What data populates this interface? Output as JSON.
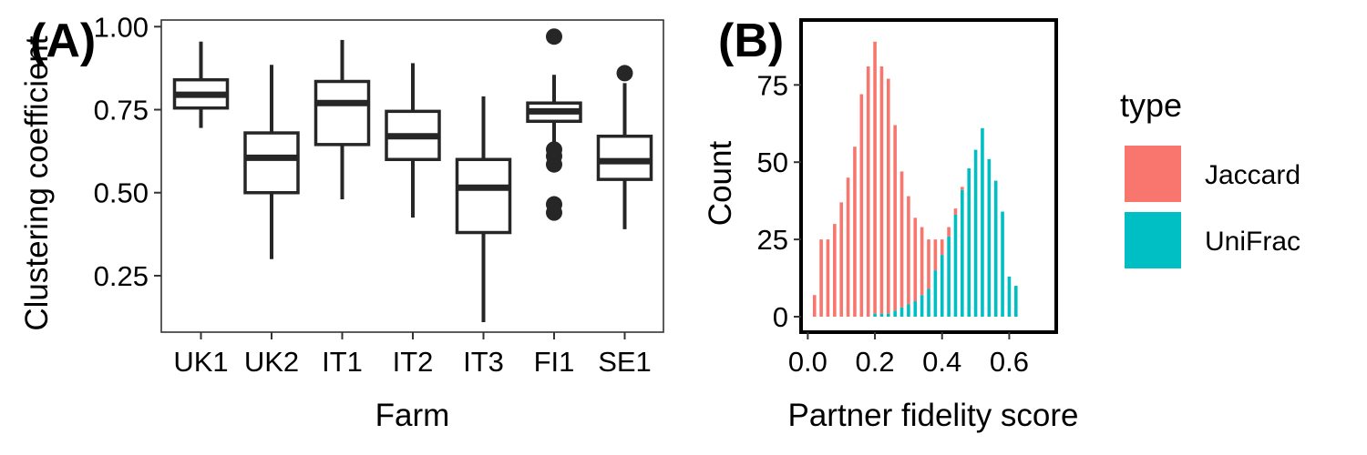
{
  "panel_a_label": "(A)",
  "panel_b_label": "(B)",
  "chart_data": [
    {
      "type": "box",
      "xlabel": "Farm",
      "ylabel": "Clustering coefficient",
      "categories": [
        "UK1",
        "UK2",
        "IT1",
        "IT2",
        "IT3",
        "FI1",
        "SE1"
      ],
      "ylim": [
        0.08,
        1.02
      ],
      "yticks": [
        0.25,
        0.5,
        0.75,
        1.0
      ],
      "ytick_labels": [
        "0.25",
        "0.50",
        "0.75",
        "1.00"
      ],
      "grid": false,
      "boxes": [
        {
          "category": "UK1",
          "min": 0.695,
          "q1": 0.755,
          "median": 0.795,
          "q3": 0.84,
          "max": 0.955,
          "outliers": []
        },
        {
          "category": "UK2",
          "min": 0.3,
          "q1": 0.5,
          "median": 0.605,
          "q3": 0.68,
          "max": 0.885,
          "outliers": []
        },
        {
          "category": "IT1",
          "min": 0.48,
          "q1": 0.645,
          "median": 0.77,
          "q3": 0.835,
          "max": 0.96,
          "outliers": []
        },
        {
          "category": "IT2",
          "min": 0.425,
          "q1": 0.6,
          "median": 0.67,
          "q3": 0.745,
          "max": 0.89,
          "outliers": []
        },
        {
          "category": "IT3",
          "min": 0.11,
          "q1": 0.38,
          "median": 0.515,
          "q3": 0.6,
          "max": 0.79,
          "outliers": []
        },
        {
          "category": "FI1",
          "min": 0.6,
          "q1": 0.715,
          "median": 0.745,
          "q3": 0.77,
          "max": 0.855,
          "outliers": [
            0.97,
            0.63,
            0.61,
            0.585,
            0.465,
            0.44
          ]
        },
        {
          "category": "SE1",
          "min": 0.39,
          "q1": 0.54,
          "median": 0.595,
          "q3": 0.67,
          "max": 0.83,
          "outliers": [
            0.86
          ]
        }
      ]
    },
    {
      "type": "bar",
      "subtype": "stacked histogram",
      "xlabel": "Partner fidelity score",
      "ylabel": "Count",
      "xlim": [
        -0.02,
        0.74
      ],
      "ylim": [
        -5,
        96
      ],
      "xticks": [
        0.0,
        0.2,
        0.4,
        0.6
      ],
      "xtick_labels": [
        "0.0",
        "0.2",
        "0.4",
        "0.6"
      ],
      "yticks": [
        0,
        25,
        50,
        75
      ],
      "ytick_labels": [
        "0",
        "25",
        "50",
        "75"
      ],
      "bin_width": 0.02,
      "grid": false,
      "legend": {
        "title": "type",
        "position": "right"
      },
      "x": [
        0.02,
        0.04,
        0.06,
        0.08,
        0.1,
        0.12,
        0.14,
        0.16,
        0.18,
        0.2,
        0.22,
        0.24,
        0.26,
        0.28,
        0.3,
        0.32,
        0.34,
        0.36,
        0.38,
        0.4,
        0.42,
        0.44,
        0.46,
        0.48,
        0.5,
        0.52,
        0.54,
        0.56,
        0.58,
        0.6,
        0.62
      ],
      "series": [
        {
          "name": "Jaccard",
          "color": "#F8766D",
          "values": [
            7,
            25,
            25,
            30,
            37,
            45,
            55,
            72,
            81,
            88,
            80,
            76,
            60,
            44,
            35,
            27,
            22,
            16,
            10,
            5,
            3,
            2,
            1,
            0,
            0,
            0,
            0,
            0,
            0,
            0,
            0
          ]
        },
        {
          "name": "UniFrac",
          "color": "#00BFC4",
          "values": [
            0,
            0,
            0,
            0,
            0,
            0,
            0,
            0,
            0,
            1,
            1,
            1,
            2,
            3,
            4,
            5,
            7,
            9,
            15,
            20,
            26,
            33,
            41,
            48,
            54,
            61,
            51,
            44,
            34,
            13,
            10
          ]
        }
      ]
    }
  ]
}
